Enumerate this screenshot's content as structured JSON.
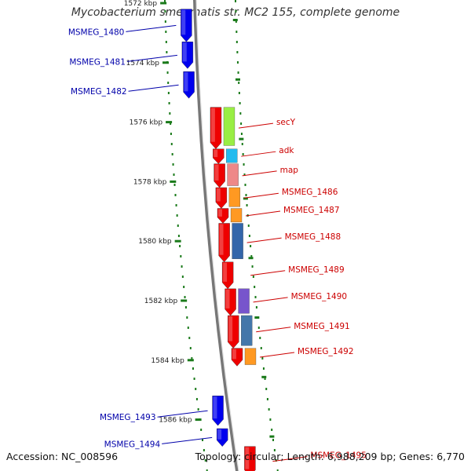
{
  "title": "Mycobacterium smegmatis str. MC2 155, complete genome",
  "footer": {
    "accession": "Accession: NC_008596",
    "topology": "Topology: circular; Length: 6,988,209 bp; Genes: 6,770"
  },
  "ruler": {
    "unit": "kbp",
    "ticks": [
      {
        "kbp": 1572,
        "label": "1572 kbp"
      },
      {
        "kbp": 1574,
        "label": "1574 kbp"
      },
      {
        "kbp": 1576,
        "label": "1576 kbp"
      },
      {
        "kbp": 1578,
        "label": "1578 kbp"
      },
      {
        "kbp": 1580,
        "label": "1580 kbp"
      },
      {
        "kbp": 1582,
        "label": "1582 kbp"
      },
      {
        "kbp": 1584,
        "label": "1584 kbp"
      },
      {
        "kbp": 1586,
        "label": "1586 kbp"
      }
    ]
  },
  "colors": {
    "left_gene": "#0000ee",
    "right_gene": "#ee0000",
    "backbone": "#999999",
    "ruler": "#1a7a1a",
    "label_left": "#0000aa",
    "label_right": "#cc0000"
  },
  "genes_left": [
    {
      "label": "MSMEG_1480",
      "start": 1572.2,
      "end": 1573.3
    },
    {
      "label": "MSMEG_1481",
      "start": 1573.3,
      "end": 1574.2
    },
    {
      "label": "MSMEG_1482",
      "start": 1574.3,
      "end": 1575.2
    },
    {
      "label": "MSMEG_1493",
      "start": 1585.2,
      "end": 1586.2
    },
    {
      "label": "MSMEG_1494",
      "start": 1586.3,
      "end": 1586.9
    }
  ],
  "genes_right": [
    {
      "label": "secY",
      "start": 1575.5,
      "end": 1576.9,
      "cog": "#99ee44"
    },
    {
      "label": "adk",
      "start": 1576.9,
      "end": 1577.4,
      "cog": "#22bbee"
    },
    {
      "label": "map",
      "start": 1577.4,
      "end": 1578.2,
      "cog": "#ee8888"
    },
    {
      "label": "MSMEG_1486",
      "start": 1578.2,
      "end": 1578.9,
      "cog": "#ff9922"
    },
    {
      "label": "MSMEG_1487",
      "start": 1578.9,
      "end": 1579.4,
      "cog": "#ff9922"
    },
    {
      "label": "MSMEG_1488",
      "start": 1579.4,
      "end": 1580.7,
      "cog": "#3366aa"
    },
    {
      "label": "MSMEG_1489",
      "start": 1580.7,
      "end": 1581.6,
      "cog": ""
    },
    {
      "label": "MSMEG_1490",
      "start": 1581.6,
      "end": 1582.5,
      "cog": "#7755cc"
    },
    {
      "label": "MSMEG_1491",
      "start": 1582.5,
      "end": 1583.6,
      "cog": "#4477aa"
    },
    {
      "label": "MSMEG_1492",
      "start": 1583.6,
      "end": 1584.2,
      "cog": "#ff9922"
    },
    {
      "label": "MSMEG_1495",
      "start": 1586.9,
      "end": 1587.9,
      "cog": ""
    }
  ]
}
